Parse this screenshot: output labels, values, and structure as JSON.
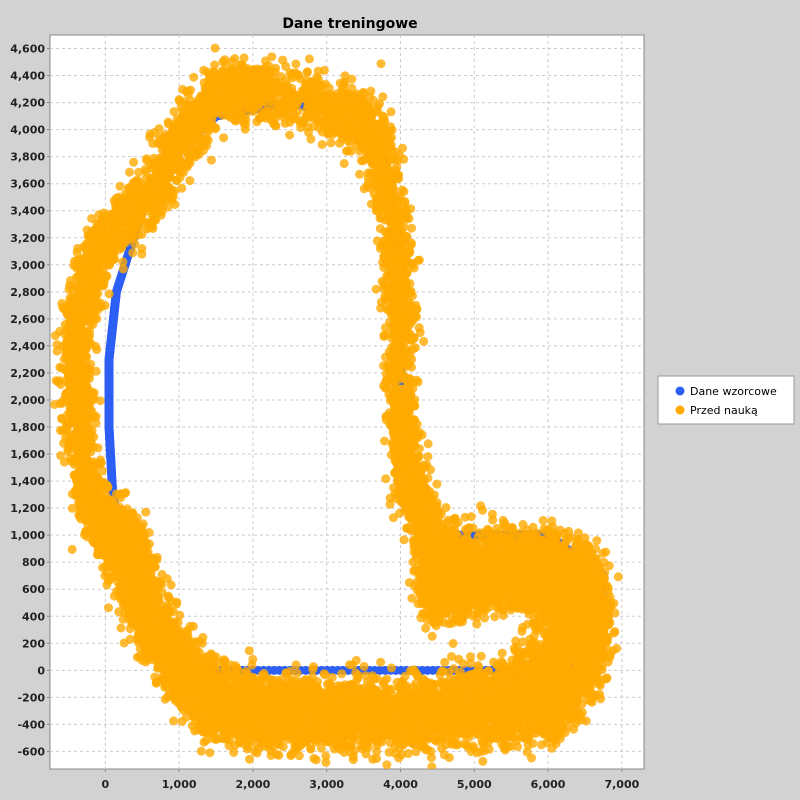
{
  "chart_data": {
    "type": "scatter",
    "title": "Dane treningowe",
    "xlabel": "",
    "ylabel": "",
    "xlim": [
      -750,
      7300
    ],
    "ylim": [
      -730,
      4700
    ],
    "x_ticks": [
      0,
      1000,
      2000,
      3000,
      4000,
      5000,
      6000,
      7000
    ],
    "x_tick_labels": [
      "0",
      "1,000",
      "2,000",
      "3,000",
      "4,000",
      "5,000",
      "6,000",
      "7,000"
    ],
    "y_ticks": [
      -600,
      -400,
      -200,
      0,
      200,
      400,
      600,
      800,
      1000,
      1200,
      1400,
      1600,
      1800,
      2000,
      2200,
      2400,
      2600,
      2800,
      3000,
      3200,
      3400,
      3600,
      3800,
      4000,
      4200,
      4400,
      4600
    ],
    "y_tick_labels": [
      "-600",
      "-400",
      "-200",
      "0",
      "200",
      "400",
      "600",
      "800",
      "1,000",
      "1,200",
      "1,400",
      "1,600",
      "1,800",
      "2,000",
      "2,200",
      "2,400",
      "2,600",
      "2,800",
      "3,000",
      "3,200",
      "3,400",
      "3,600",
      "3,800",
      "4,000",
      "4,200",
      "4,400",
      "4,600"
    ],
    "grid": true,
    "legend_position": "right",
    "series": [
      {
        "name": "Dane wzorcowe",
        "color": "#2d5ff5",
        "path_vertices": [
          [
            1500,
            0
          ],
          [
            5800,
            0
          ],
          [
            6000,
            100
          ],
          [
            6250,
            420
          ],
          [
            6000,
            600
          ],
          [
            5600,
            760
          ],
          [
            4600,
            850
          ],
          [
            4500,
            950
          ],
          [
            4500,
            1000
          ],
          [
            6000,
            1000
          ],
          [
            6750,
            700
          ],
          [
            6700,
            200
          ],
          [
            6200,
            -50
          ],
          [
            5400,
            -250
          ],
          [
            4000,
            -300
          ],
          [
            2500,
            -300
          ],
          [
            1500,
            -150
          ],
          [
            900,
            100
          ],
          [
            500,
            450
          ],
          [
            250,
            850
          ],
          [
            100,
            1300
          ],
          [
            50,
            1800
          ],
          [
            50,
            2300
          ],
          [
            150,
            2800
          ],
          [
            500,
            3400
          ],
          [
            900,
            3800
          ],
          [
            1500,
            4100
          ],
          [
            2500,
            4200
          ],
          [
            3300,
            4100
          ],
          [
            3700,
            3800
          ],
          [
            3950,
            3300
          ],
          [
            4000,
            2600
          ],
          [
            4000,
            1800
          ],
          [
            4150,
            1200
          ],
          [
            4450,
            1000
          ]
        ],
        "points": [
          [
            1500,
            0
          ],
          [
            2000,
            0
          ],
          [
            2500,
            0
          ],
          [
            3000,
            0
          ],
          [
            3500,
            0
          ],
          [
            4000,
            0
          ],
          [
            4500,
            0
          ],
          [
            5000,
            0
          ],
          [
            5500,
            0
          ],
          [
            5900,
            0
          ],
          [
            4600,
            1000
          ],
          [
            5000,
            1000
          ],
          [
            5500,
            1000
          ],
          [
            6000,
            1000
          ],
          [
            50,
            1800
          ],
          [
            150,
            1400
          ],
          [
            250,
            900
          ],
          [
            80,
            2800
          ],
          [
            1500,
            4000
          ],
          [
            2500,
            4000
          ],
          [
            3000,
            4000
          ]
        ]
      },
      {
        "name": "Przed nauką",
        "color": "#ffaa00",
        "noise_scale": 110,
        "points_per_segment": 220,
        "path_vertices": [
          [
            1500,
            -250
          ],
          [
            2500,
            -300
          ],
          [
            3500,
            -300
          ],
          [
            4500,
            -300
          ],
          [
            5500,
            -300
          ],
          [
            6200,
            -200
          ],
          [
            6600,
            100
          ],
          [
            6650,
            500
          ],
          [
            6500,
            760
          ],
          [
            6000,
            850
          ],
          [
            5500,
            860
          ],
          [
            4800,
            850
          ],
          [
            4550,
            800
          ],
          [
            4450,
            650
          ],
          [
            4500,
            550
          ],
          [
            5000,
            600
          ],
          [
            5600,
            620
          ],
          [
            6150,
            520
          ],
          [
            6250,
            300
          ],
          [
            6000,
            50
          ],
          [
            5500,
            -100
          ],
          [
            4500,
            -200
          ],
          [
            3000,
            -250
          ],
          [
            2000,
            -200
          ],
          [
            1400,
            -100
          ],
          [
            900,
            150
          ],
          [
            600,
            500
          ],
          [
            400,
            800
          ],
          [
            250,
            1000
          ],
          [
            -200,
            1200
          ],
          [
            -350,
            1700
          ],
          [
            -400,
            2200
          ],
          [
            -350,
            2700
          ],
          [
            -100,
            3100
          ],
          [
            400,
            3400
          ],
          [
            800,
            3650
          ],
          [
            1100,
            4000
          ],
          [
            1500,
            4250
          ],
          [
            2000,
            4300
          ],
          [
            2800,
            4200
          ],
          [
            3400,
            4100
          ],
          [
            3700,
            3900
          ],
          [
            3900,
            3300
          ],
          [
            4000,
            2700
          ],
          [
            4000,
            2000
          ],
          [
            4050,
            1500
          ],
          [
            4300,
            1150
          ],
          [
            4450,
            900
          ],
          [
            4500,
            700
          ],
          [
            4800,
            700
          ],
          [
            5500,
            700
          ],
          [
            6100,
            620
          ],
          [
            6500,
            600
          ],
          [
            6600,
            300
          ],
          [
            6400,
            -100
          ],
          [
            6000,
            -350
          ],
          [
            5000,
            -400
          ],
          [
            4000,
            -400
          ],
          [
            3000,
            -400
          ],
          [
            2000,
            -400
          ],
          [
            1400,
            -300
          ],
          [
            900,
            0
          ],
          [
            500,
            400
          ],
          [
            200,
            850
          ],
          [
            -100,
            1200
          ]
        ]
      }
    ]
  }
}
